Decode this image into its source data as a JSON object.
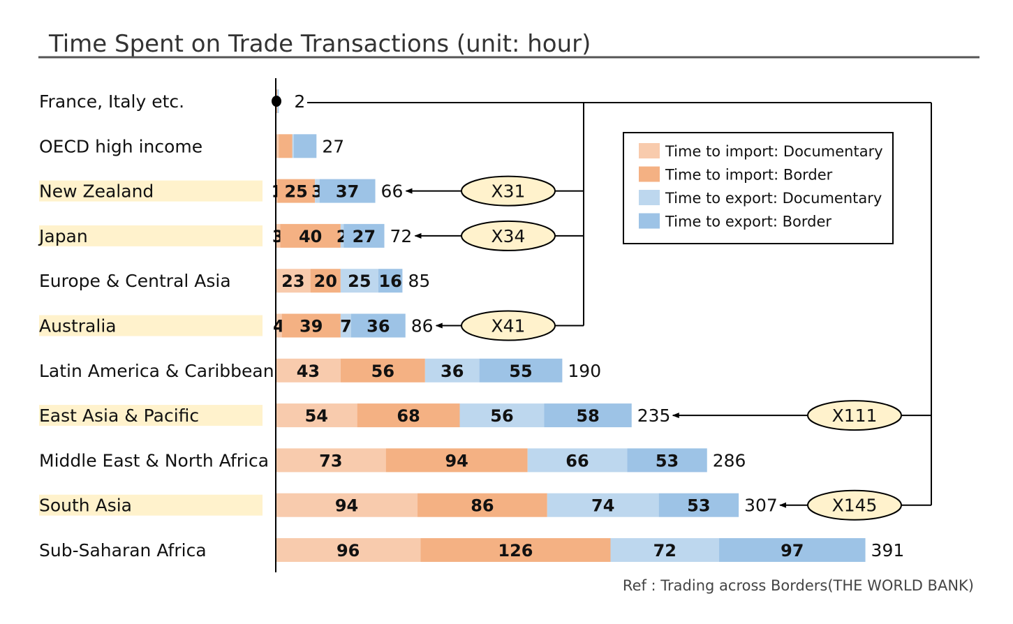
{
  "chart_data": {
    "type": "bar",
    "orientation": "horizontal",
    "stacked": true,
    "title": "Time Spent on Trade Transactions (unit: hour)",
    "categories": [
      "France, Italy etc.",
      "OECD high income",
      "New Zealand",
      "Japan",
      "Europe & Central Asia",
      "Australia",
      "Latin America & Caribbean",
      "East Asia & Pacific",
      "Middle East & North Africa",
      "South Asia",
      "Sub-Saharan Africa"
    ],
    "highlighted": [
      false,
      false,
      true,
      true,
      false,
      true,
      false,
      true,
      false,
      true,
      false
    ],
    "series": [
      {
        "name": "Time to import: Documentary",
        "color": "#f8cbad",
        "values": [
          0.5,
          2,
          1,
          3,
          23,
          4,
          43,
          54,
          73,
          94,
          96
        ]
      },
      {
        "name": "Time to import: Border",
        "color": "#f4b183",
        "values": [
          0.5,
          9,
          25,
          40,
          20,
          39,
          56,
          68,
          94,
          86,
          126
        ]
      },
      {
        "name": "Time to export: Documentary",
        "color": "#bdd7ee",
        "values": [
          0.5,
          1,
          3,
          2,
          25,
          7,
          36,
          56,
          66,
          74,
          72
        ]
      },
      {
        "name": "Time to export: Border",
        "color": "#9dc3e6",
        "values": [
          0.5,
          15,
          37,
          27,
          16,
          36,
          55,
          58,
          53,
          53,
          97
        ]
      }
    ],
    "segment_labels": [
      [
        "",
        "",
        "",
        ""
      ],
      [
        "",
        "",
        "",
        ""
      ],
      [
        "1",
        "25",
        "3",
        "37"
      ],
      [
        "3",
        "40",
        "2",
        "27"
      ],
      [
        "23",
        "20",
        "25",
        "16"
      ],
      [
        "4",
        "39",
        "7",
        "36"
      ],
      [
        "43",
        "56",
        "36",
        "55"
      ],
      [
        "54",
        "68",
        "56",
        "58"
      ],
      [
        "73",
        "94",
        "66",
        "53"
      ],
      [
        "94",
        "86",
        "74",
        "53"
      ],
      [
        "96",
        "126",
        "72",
        "97"
      ]
    ],
    "totals": [
      "2",
      "27",
      "66",
      "72",
      "85",
      "86",
      "190",
      "235",
      "286",
      "307",
      "391"
    ],
    "multipliers": [
      {
        "row": 2,
        "label": "X31"
      },
      {
        "row": 3,
        "label": "X34"
      },
      {
        "row": 5,
        "label": "X41"
      },
      {
        "row": 7,
        "label": "X111"
      },
      {
        "row": 9,
        "label": "X145"
      }
    ],
    "multiplier_reference_row": 0,
    "highlight_color": "#fff2cc",
    "legend_position": "top-right",
    "grid": false
  },
  "source": "Ref : Trading across Borders(THE WORLD BANK)"
}
